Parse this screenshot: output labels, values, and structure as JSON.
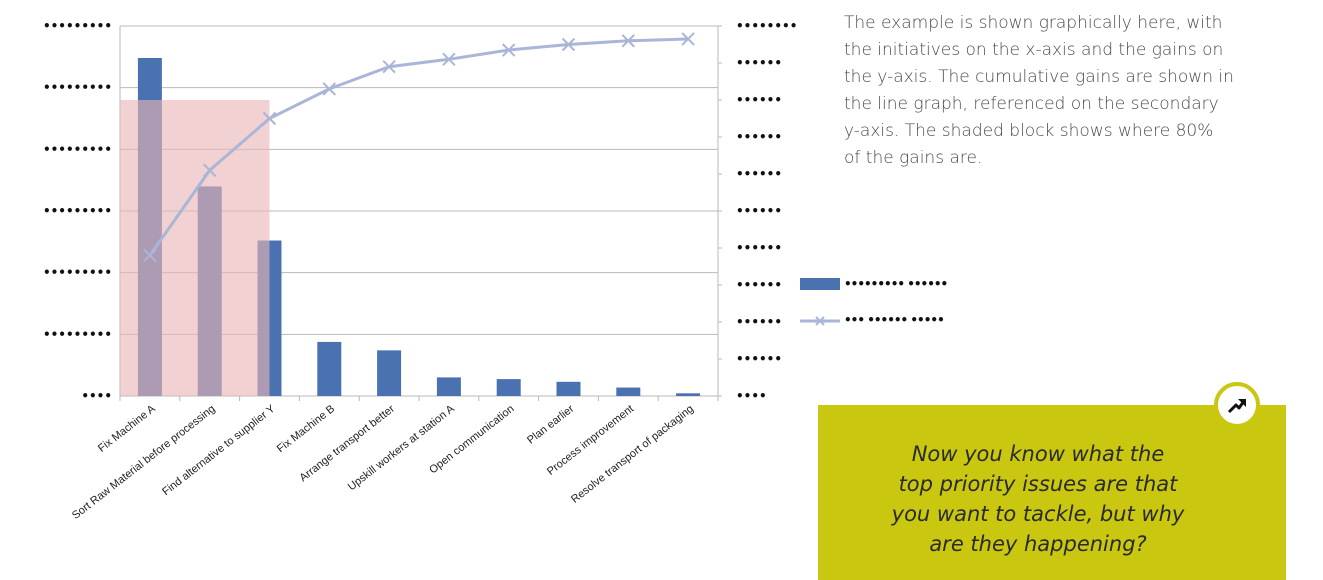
{
  "chart_data": {
    "type": "bar",
    "categories": [
      "Fix Machine A",
      "Sort Raw Material before processing",
      "Find alternative to supplier Y",
      "Fix Machine B",
      "Arrange transport better",
      "Upskill workers at station A",
      "Open communication",
      "Plan earlier",
      "Process improvement",
      "Resolve transport of packaging"
    ],
    "series": [
      {
        "values": [
          100,
          62,
          46,
          16,
          13.5,
          5.5,
          5,
          4.2,
          2.5,
          0.8
        ]
      },
      {
        "values": [
          38,
          61,
          75,
          83,
          89,
          91,
          93.5,
          95,
          96,
          96.5
        ],
        "axis": "secondary"
      }
    ],
    "ylim": [
      0,
      100
    ],
    "y2lim": [
      0,
      100
    ],
    "highlight": {
      "from_category": 0,
      "to_category": 2,
      "level": 80,
      "color": "#e8b4b4"
    },
    "primary_tick_labels": [
      "••••",
      "•••••••••",
      "•••••••••",
      "•••••••••",
      "•••••••••",
      "•••••••••",
      "•••••••••"
    ],
    "secondary_tick_labels": [
      "••••",
      "••••••",
      "••••••",
      "••••••",
      "••••••",
      "••••••",
      "••••••",
      "••••••",
      "••••••",
      "••••••",
      "••••••••"
    ],
    "legend": {
      "bar_label": "••••••••• ••••••",
      "line_label": "••• •••••• •••••"
    },
    "colors": {
      "bar": "#4a72b0",
      "line": "#aab6d8",
      "grid": "#b8b8b8"
    },
    "grid": true
  },
  "description": {
    "lines": [
      "The example is shown graphically here, with",
      "the initiatives on the x-axis and the gains on",
      "the y-axis. The cumulative gains are shown in",
      "the line graph, referenced on the secondary",
      "y-axis. The shaded block shows where 80%",
      "of the gains are."
    ]
  },
  "callout": {
    "icon": "trend-arrow-icon",
    "lines": [
      "Now you know what the",
      "top priority issues are that",
      "you want to tackle, but why",
      "are they happening?"
    ]
  }
}
